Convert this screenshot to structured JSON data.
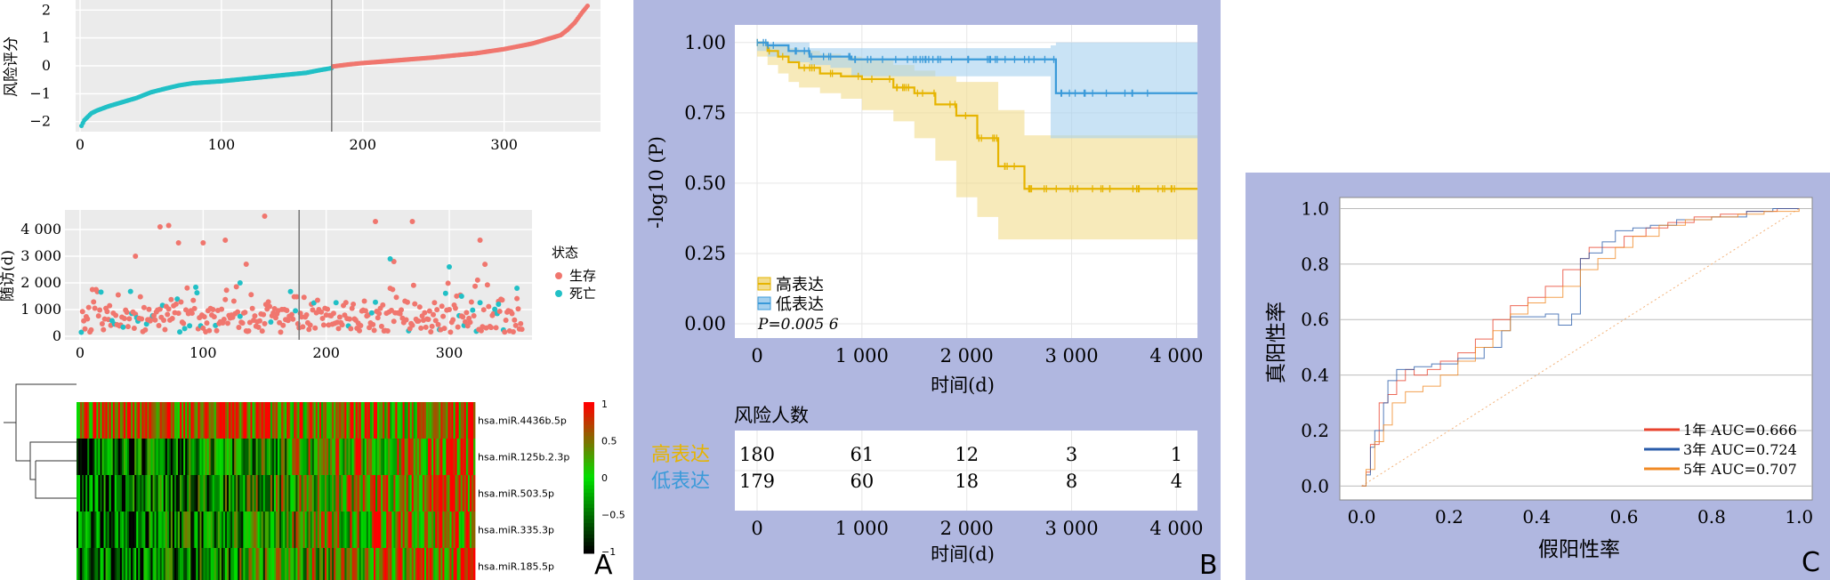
{
  "panel_letters": {
    "a": "A",
    "b": "B",
    "c": "C"
  },
  "chart_data": [
    {
      "id": "risk_score",
      "type": "scatter",
      "ylabel": "风险评分",
      "xlabel": "",
      "xlim": [
        0,
        360
      ],
      "ylim": [
        -2.2,
        2.2
      ],
      "xticks": [
        0,
        100,
        200,
        300
      ],
      "yticks": [
        -2,
        -1,
        0,
        1,
        2
      ],
      "cutoff_x": 178,
      "n": 359,
      "colors": {
        "low": "#21c0c6",
        "high": "#f0766e"
      },
      "curve": {
        "x": [
          1,
          2,
          3,
          5,
          8,
          12,
          20,
          30,
          40,
          50,
          60,
          70,
          80,
          100,
          120,
          140,
          160,
          170,
          178,
          179,
          190,
          200,
          220,
          250,
          280,
          300,
          320,
          330,
          340,
          345,
          350,
          355,
          359
        ],
        "y": [
          -2.15,
          -2.05,
          -1.95,
          -1.85,
          -1.7,
          -1.6,
          -1.45,
          -1.3,
          -1.15,
          -0.95,
          -0.82,
          -0.7,
          -0.62,
          -0.55,
          -0.45,
          -0.35,
          -0.25,
          -0.15,
          -0.08,
          -0.02,
          0.05,
          0.1,
          0.18,
          0.3,
          0.45,
          0.6,
          0.8,
          0.95,
          1.1,
          1.3,
          1.55,
          1.9,
          2.15
        ]
      }
    },
    {
      "id": "followup",
      "type": "scatter",
      "ylabel": "随访(d)",
      "xlabel": "",
      "xlim": [
        0,
        360
      ],
      "ylim": [
        0,
        4600
      ],
      "xticks": [
        0,
        100,
        200,
        300
      ],
      "yticks": [
        0,
        1000,
        2000,
        3000,
        4000
      ],
      "ytick_labels": [
        "0",
        "1 000",
        "2 000",
        "3 000",
        "4 000"
      ],
      "cutoff_x": 178,
      "legend_title": "状态",
      "series": [
        {
          "name": "生存",
          "color": "#f0766e"
        },
        {
          "name": "死亡",
          "color": "#21c0c6"
        }
      ],
      "highlight_points": [
        {
          "x": 65,
          "y": 4100,
          "status": 0
        },
        {
          "x": 72,
          "y": 4150,
          "status": 0
        },
        {
          "x": 150,
          "y": 4500,
          "status": 0
        },
        {
          "x": 240,
          "y": 4300,
          "status": 0
        },
        {
          "x": 270,
          "y": 4300,
          "status": 0
        },
        {
          "x": 325,
          "y": 3600,
          "status": 0
        },
        {
          "x": 45,
          "y": 3000,
          "status": 0
        },
        {
          "x": 80,
          "y": 3500,
          "status": 0
        },
        {
          "x": 100,
          "y": 3500,
          "status": 0
        },
        {
          "x": 118,
          "y": 3600,
          "status": 0
        },
        {
          "x": 135,
          "y": 2700,
          "status": 0
        },
        {
          "x": 255,
          "y": 2800,
          "status": 0
        },
        {
          "x": 300,
          "y": 2600,
          "status": 1
        },
        {
          "x": 252,
          "y": 2900,
          "status": 1
        },
        {
          "x": 130,
          "y": 2000,
          "status": 1
        },
        {
          "x": 355,
          "y": 1800,
          "status": 1
        },
        {
          "x": 340,
          "y": 1200,
          "status": 1
        },
        {
          "x": 310,
          "y": 1500,
          "status": 1
        }
      ]
    },
    {
      "id": "heatmap",
      "type": "heatmap",
      "rows": [
        "hsa.miR.4436b.5p",
        "hsa.miR.125b.2.3p",
        "hsa.miR.503.5p",
        "hsa.miR.335.3p",
        "hsa.miR.185.5p"
      ],
      "scale_ticks": [
        1,
        0.5,
        0,
        -0.5,
        -1
      ],
      "scale_tick_labels": [
        "1",
        "0.5",
        "0",
        "−0.5",
        "−1"
      ],
      "colors": {
        "high": "#ff0000",
        "mid": "#00e000",
        "low": "#000000"
      }
    },
    {
      "id": "km",
      "type": "line",
      "ylabel": "-log10 (P)",
      "xlabel": "时间(d)",
      "xlim": [
        0,
        4200
      ],
      "ylim": [
        0,
        1.05
      ],
      "xticks": [
        0,
        1000,
        2000,
        3000,
        4000
      ],
      "xtick_labels": [
        "0",
        "1 000",
        "2 000",
        "3 000",
        "4 000"
      ],
      "yticks": [
        0,
        0.25,
        0.5,
        0.75,
        1.0
      ],
      "ytick_labels": [
        "0.00",
        "0.25",
        "0.50",
        "0.75",
        "1.00"
      ],
      "pvalue": "P=0.005 6",
      "series": [
        {
          "name": "高表达",
          "color": "#e6b400",
          "band": "#f2dc8c",
          "x": [
            0,
            100,
            200,
            300,
            400,
            600,
            800,
            1000,
            1300,
            1500,
            1700,
            1900,
            2100,
            2300,
            2550,
            4200
          ],
          "y": [
            1.0,
            0.97,
            0.95,
            0.93,
            0.91,
            0.89,
            0.88,
            0.87,
            0.84,
            0.82,
            0.78,
            0.74,
            0.66,
            0.56,
            0.48,
            0.48
          ],
          "lower": [
            1.0,
            0.95,
            0.92,
            0.89,
            0.86,
            0.84,
            0.82,
            0.8,
            0.76,
            0.72,
            0.66,
            0.58,
            0.45,
            0.38,
            0.3,
            0.3
          ],
          "upper": [
            1.0,
            0.99,
            0.99,
            0.98,
            0.97,
            0.96,
            0.95,
            0.94,
            0.92,
            0.9,
            0.88,
            0.86,
            0.86,
            0.76,
            0.67,
            0.67
          ]
        },
        {
          "name": "低表达",
          "color": "#3a9ad9",
          "band": "#a5d0ee",
          "x": [
            0,
            100,
            300,
            500,
            700,
            900,
            1500,
            2800,
            2850,
            4200
          ],
          "y": [
            1.0,
            0.99,
            0.97,
            0.95,
            0.95,
            0.94,
            0.94,
            0.94,
            0.82,
            0.82
          ],
          "lower": [
            1.0,
            0.97,
            0.95,
            0.93,
            0.92,
            0.91,
            0.88,
            0.88,
            0.66,
            0.66
          ],
          "upper": [
            1.0,
            1.0,
            1.0,
            0.98,
            0.98,
            0.98,
            0.98,
            0.99,
            1.0,
            1.0
          ]
        }
      ],
      "risk_table": {
        "title": "风险人数",
        "xlabel": "时间(d)",
        "times": [
          0,
          1000,
          2000,
          3000,
          4000
        ],
        "time_labels": [
          "0",
          "1 000",
          "2 000",
          "3 000",
          "4 000"
        ],
        "rows": [
          {
            "name": "高表达",
            "color": "#e6b400",
            "values": [
              "180",
              "61",
              "12",
              "3",
              "1"
            ]
          },
          {
            "name": "低表达",
            "color": "#3a9ad9",
            "values": [
              "179",
              "60",
              "18",
              "8",
              "4"
            ]
          }
        ]
      }
    },
    {
      "id": "roc",
      "type": "line",
      "xlabel": "假阳性率",
      "ylabel": "真阳性率",
      "xlim": [
        -0.05,
        1.03
      ],
      "ylim": [
        -0.05,
        1.04
      ],
      "xticks": [
        0.0,
        0.2,
        0.4,
        0.6,
        0.8,
        1.0
      ],
      "yticks": [
        0.0,
        0.2,
        0.4,
        0.6,
        0.8,
        1.0
      ],
      "tick_labels": [
        "0.0",
        "0.2",
        "0.4",
        "0.6",
        "0.8",
        "1.0"
      ],
      "series": [
        {
          "name": "1年 AUC=0.666",
          "color": "#e8432e",
          "x": [
            0,
            0.01,
            0.02,
            0.04,
            0.06,
            0.08,
            0.1,
            0.12,
            0.15,
            0.18,
            0.22,
            0.26,
            0.3,
            0.34,
            0.38,
            0.42,
            0.46,
            0.5,
            0.52,
            0.56,
            0.6,
            0.65,
            0.7,
            0.76,
            0.82,
            0.88,
            0.95,
            1.0
          ],
          "y": [
            0,
            0.05,
            0.15,
            0.3,
            0.33,
            0.38,
            0.42,
            0.4,
            0.42,
            0.45,
            0.48,
            0.53,
            0.6,
            0.65,
            0.68,
            0.72,
            0.78,
            0.82,
            0.86,
            0.86,
            0.9,
            0.93,
            0.95,
            0.97,
            0.98,
            0.99,
            1.0,
            1.0
          ]
        },
        {
          "name": "3年 AUC=0.724",
          "color": "#2a5caa",
          "x": [
            0,
            0.01,
            0.02,
            0.03,
            0.05,
            0.06,
            0.08,
            0.12,
            0.16,
            0.22,
            0.28,
            0.32,
            0.34,
            0.38,
            0.42,
            0.45,
            0.48,
            0.5,
            0.52,
            0.55,
            0.58,
            0.62,
            0.66,
            0.72,
            0.8,
            0.88,
            0.94,
            1.0
          ],
          "y": [
            0,
            0.04,
            0.14,
            0.2,
            0.3,
            0.38,
            0.42,
            0.43,
            0.44,
            0.46,
            0.5,
            0.56,
            0.61,
            0.61,
            0.62,
            0.58,
            0.62,
            0.82,
            0.84,
            0.88,
            0.92,
            0.93,
            0.94,
            0.96,
            0.97,
            0.99,
            1.0,
            1.0
          ]
        },
        {
          "name": "5年 AUC=0.707",
          "color": "#f08a24",
          "x": [
            0,
            0.01,
            0.03,
            0.05,
            0.07,
            0.1,
            0.14,
            0.18,
            0.22,
            0.26,
            0.3,
            0.34,
            0.38,
            0.42,
            0.46,
            0.5,
            0.54,
            0.58,
            0.62,
            0.68,
            0.74,
            0.8,
            0.86,
            0.92,
            1.0
          ],
          "y": [
            0,
            0.06,
            0.16,
            0.22,
            0.3,
            0.34,
            0.36,
            0.4,
            0.45,
            0.5,
            0.56,
            0.62,
            0.66,
            0.68,
            0.72,
            0.78,
            0.82,
            0.86,
            0.9,
            0.94,
            0.96,
            0.97,
            0.98,
            0.99,
            1.0
          ]
        }
      ]
    }
  ]
}
